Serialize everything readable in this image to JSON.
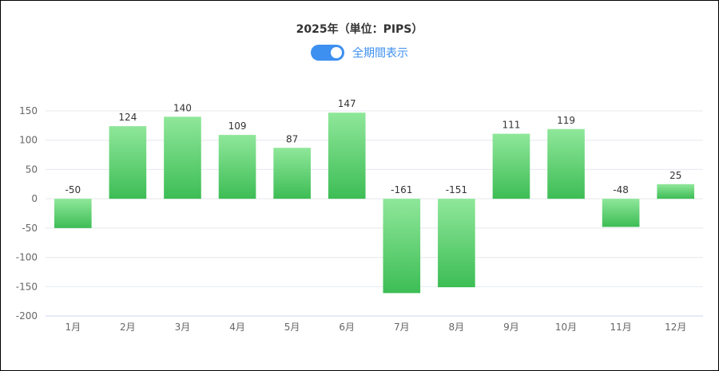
{
  "chart_data": {
    "type": "bar",
    "title": "2025年（単位：PIPS）",
    "categories": [
      "1月",
      "2月",
      "3月",
      "4月",
      "5月",
      "6月",
      "7月",
      "8月",
      "9月",
      "10月",
      "11月",
      "12月"
    ],
    "values": [
      -50,
      124,
      140,
      109,
      87,
      147,
      -161,
      -151,
      111,
      119,
      -48,
      25
    ],
    "data_labels": [
      "-50",
      "124",
      "140",
      "109",
      "87",
      "147",
      "-161",
      "-151",
      "111",
      "119",
      "-48",
      "25"
    ],
    "yticks": [
      150,
      100,
      50,
      0,
      -50,
      -100,
      -150,
      -200
    ],
    "ytick_labels": [
      "150",
      "100",
      "50",
      "0",
      "-50",
      "-100",
      "-150",
      "-200"
    ],
    "ylim": [
      -200,
      150
    ],
    "grid": true,
    "colors": {
      "bar_top": "#8fe79a",
      "bar_bottom": "#3dbd55",
      "grid": "#e6e8ee",
      "axis": "#ccd6eb"
    }
  },
  "toggle": {
    "label": "全期間表示",
    "state": "on",
    "color": "#3d8ff0"
  }
}
